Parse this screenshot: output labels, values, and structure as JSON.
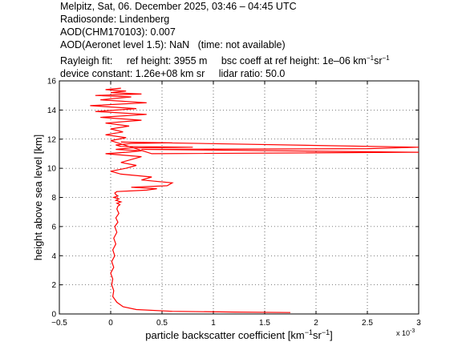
{
  "header": {
    "line1": "Melpitz, Sat, 06. December 2025, 03:46 – 04:45 UTC",
    "line2": "Radiosonde: Lindenberg",
    "line3": "AOD(CHM170103): 0.007",
    "line4": "AOD(Aeronet level 1.5): NaN   (time: not available)",
    "line5_a": "Rayleigh fit:",
    "line5_b": "ref height: 3955 m",
    "line5_c": "bsc coeff at ref height: 1e–06 km",
    "line5_c_unit_sup1": "−1",
    "line5_c_unit_mid": "sr",
    "line5_c_unit_sup2": "−1",
    "line6_a": "device constant: 1.26e+08 km sr",
    "line6_b": "lidar ratio: 50.0"
  },
  "chart_data": {
    "type": "line",
    "xlabel": "particle backscatter coefficient [km",
    "xlabel_sup1": "−1",
    "xlabel_mid": "sr",
    "xlabel_sup2": "−1",
    "xlabel_end": "]",
    "ylabel": "height above sea level [km]",
    "x_multiplier_label": "x 10",
    "x_multiplier_exp": "-3",
    "xlim": [
      -0.5,
      3
    ],
    "ylim": [
      0,
      16
    ],
    "x_ticks": [
      -0.5,
      0,
      0.5,
      1,
      1.5,
      2,
      2.5,
      3
    ],
    "x_tick_labels": [
      "−0.5",
      "0",
      "0.5",
      "1",
      "1.5",
      "2",
      "2.5",
      "3"
    ],
    "y_ticks": [
      0,
      2,
      4,
      6,
      8,
      10,
      12,
      14,
      16
    ],
    "y_tick_labels": [
      "0",
      "2",
      "4",
      "6",
      "8",
      "10",
      "12",
      "14",
      "16"
    ],
    "grid": true,
    "line_color": "#ff0000",
    "series": [
      {
        "x": [
          1.75,
          1.2,
          0.6,
          0.25,
          0.12,
          0.06,
          0.02,
          0.03,
          0.01,
          0.02,
          0.0,
          0.03,
          0.01,
          0.04,
          0.02,
          0.05,
          0.03,
          0.06,
          0.04,
          0.07,
          0.05,
          0.08,
          0.06,
          0.07,
          0.09,
          0.06,
          0.1,
          0.05,
          0.08,
          0.03,
          0.07,
          0.05,
          0.04,
          0.06,
          0.35,
          0.45,
          0.2,
          0.55,
          0.6,
          0.3,
          0.4,
          0.1,
          0.0,
          0.15,
          0.25,
          0.1,
          0.2,
          0.3,
          -0.05,
          0.15,
          0.3,
          0.05,
          0.2,
          0.8,
          0.1,
          0.05,
          0.2,
          0.6,
          0.1,
          3.0,
          2.5,
          0.3,
          3.0,
          0.4,
          0.0,
          0.15,
          -0.05,
          0.12,
          0.0,
          0.18,
          -0.05,
          0.3,
          -0.1,
          0.35,
          -0.15,
          0.25,
          -0.2,
          0.35,
          -0.1,
          0.2,
          -0.15,
          0.3,
          0.0,
          0.15,
          -0.05,
          0.1
        ],
        "y": [
          0.1,
          0.13,
          0.18,
          0.3,
          0.5,
          0.8,
          1.2,
          1.6,
          2.0,
          2.4,
          2.8,
          3.2,
          3.6,
          4.0,
          4.4,
          4.8,
          5.2,
          5.6,
          6.0,
          6.3,
          6.6,
          6.9,
          7.2,
          7.4,
          7.5,
          7.6,
          7.7,
          7.8,
          7.9,
          8.0,
          8.1,
          8.2,
          8.3,
          8.4,
          8.5,
          8.6,
          8.7,
          8.8,
          9.0,
          9.2,
          9.4,
          9.6,
          9.8,
          10.0,
          10.2,
          10.4,
          10.6,
          10.8,
          11.0,
          11.1,
          11.2,
          11.3,
          11.4,
          11.45,
          11.5,
          11.6,
          11.7,
          11.75,
          11.8,
          11.45,
          11.35,
          11.3,
          11.1,
          11.0,
          11.9,
          12.1,
          12.3,
          12.5,
          12.7,
          12.9,
          13.1,
          13.3,
          13.5,
          13.7,
          13.9,
          14.1,
          14.3,
          14.5,
          14.7,
          14.9,
          15.0,
          15.1,
          15.2,
          15.3,
          15.4,
          15.5
        ]
      }
    ]
  }
}
